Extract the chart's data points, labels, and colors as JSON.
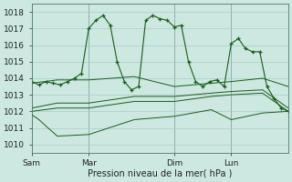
{
  "xlabel": "Pression niveau de la mer( hPa )",
  "bg_color": "#cce8e0",
  "grid_color": "#aacccc",
  "line_color": "#1a5c1a",
  "ylim": [
    1009.5,
    1018.5
  ],
  "yticks": [
    1010,
    1011,
    1012,
    1013,
    1014,
    1015,
    1016,
    1017,
    1018
  ],
  "day_labels": [
    "Sam",
    "Mar",
    "Dim",
    "Lun"
  ],
  "day_positions": [
    0.0,
    0.222,
    0.556,
    0.778
  ],
  "vline_positions": [
    0.222,
    0.556,
    0.778
  ],
  "line1_x": [
    0.0,
    0.028,
    0.056,
    0.083,
    0.111,
    0.139,
    0.167,
    0.194,
    0.222,
    0.25,
    0.278,
    0.306,
    0.333,
    0.361,
    0.389,
    0.417,
    0.444,
    0.472,
    0.5,
    0.528,
    0.556,
    0.583,
    0.611,
    0.639,
    0.667,
    0.694,
    0.722,
    0.75,
    0.778,
    0.806,
    0.833,
    0.861,
    0.889,
    0.917,
    0.944,
    0.972,
    1.0
  ],
  "line1_y": [
    1013.8,
    1013.6,
    1013.8,
    1013.7,
    1013.6,
    1013.8,
    1014.0,
    1014.3,
    1017.0,
    1017.5,
    1017.8,
    1017.2,
    1015.0,
    1013.8,
    1013.3,
    1013.5,
    1017.5,
    1017.8,
    1017.6,
    1017.5,
    1017.1,
    1017.2,
    1015.0,
    1013.8,
    1013.5,
    1013.8,
    1013.9,
    1013.5,
    1016.1,
    1016.4,
    1015.8,
    1015.6,
    1015.6,
    1013.5,
    1012.8,
    1012.2,
    1012.0
  ],
  "line2_x": [
    0.0,
    0.1,
    0.222,
    0.4,
    0.556,
    0.7,
    0.778,
    0.9,
    1.0
  ],
  "line2_y": [
    1013.7,
    1013.9,
    1013.9,
    1014.1,
    1013.5,
    1013.7,
    1013.8,
    1014.0,
    1013.5
  ],
  "line3_x": [
    0.0,
    0.1,
    0.222,
    0.4,
    0.556,
    0.7,
    0.778,
    0.9,
    1.0
  ],
  "line3_y": [
    1012.2,
    1012.5,
    1012.5,
    1012.9,
    1012.9,
    1013.1,
    1013.2,
    1013.3,
    1012.2
  ],
  "line4_x": [
    0.0,
    0.1,
    0.222,
    0.4,
    0.556,
    0.7,
    0.778,
    0.9,
    1.0
  ],
  "line4_y": [
    1012.0,
    1012.2,
    1012.2,
    1012.6,
    1012.6,
    1012.9,
    1013.0,
    1013.1,
    1012.0
  ],
  "line5_x": [
    0.0,
    0.028,
    0.056,
    0.1,
    0.222,
    0.4,
    0.556,
    0.7,
    0.778,
    0.9,
    1.0
  ],
  "line5_y": [
    1011.8,
    1011.5,
    1011.1,
    1010.5,
    1010.6,
    1011.5,
    1011.7,
    1012.1,
    1011.5,
    1011.9,
    1012.0
  ]
}
